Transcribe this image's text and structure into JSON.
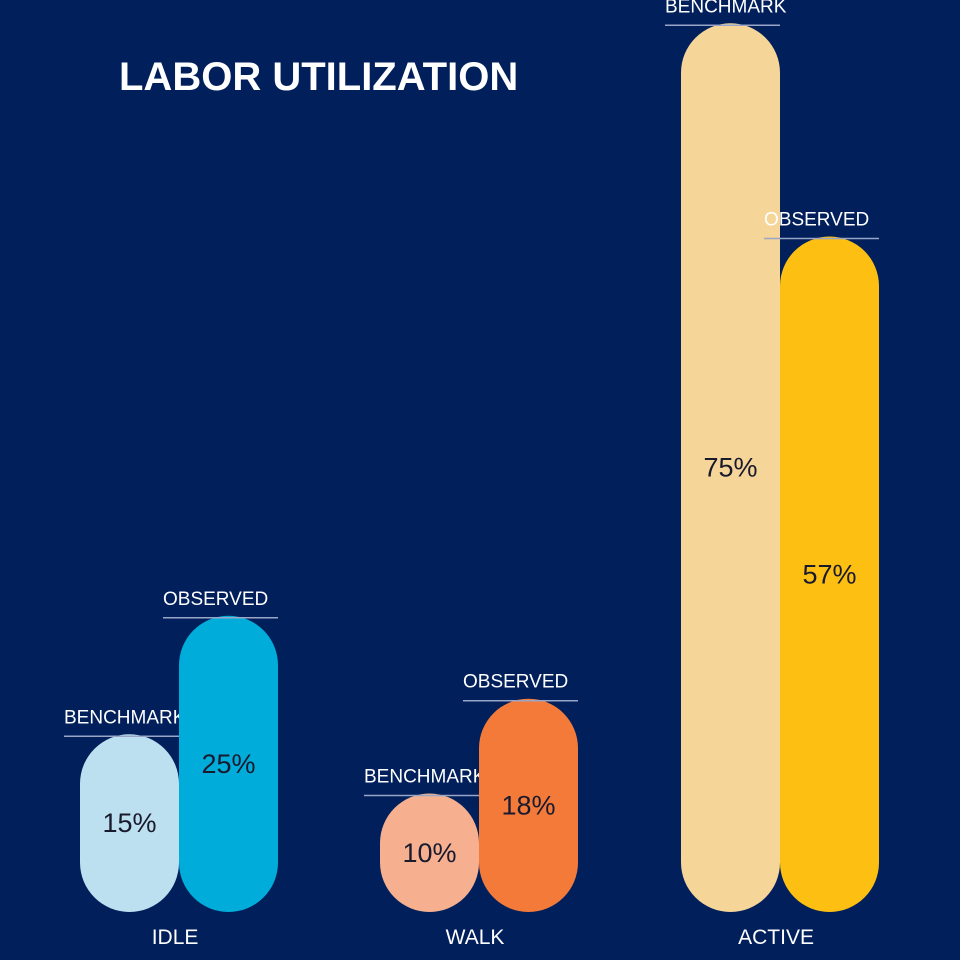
{
  "chart_data": {
    "type": "bar",
    "title": "LABOR UTILIZATION",
    "categories": [
      "IDLE",
      "WALK",
      "ACTIVE"
    ],
    "series": [
      {
        "name": "BENCHMARK",
        "values": [
          15,
          10,
          75
        ],
        "labels": [
          "15%",
          "10%",
          "75%"
        ],
        "colors": [
          "#bde0f0",
          "#f6b08f",
          "#f5d598"
        ]
      },
      {
        "name": "OBSERVED",
        "values": [
          25,
          18,
          57
        ],
        "labels": [
          "25%",
          "18%",
          "57%"
        ],
        "colors": [
          "#00acd9",
          "#f47a3a",
          "#fdbf12"
        ]
      }
    ],
    "unit": "%",
    "xlabel": "",
    "ylabel": "",
    "grid": false,
    "legend": "none"
  },
  "colors": {
    "background": "#001f5b",
    "text": "#ffffff",
    "value_text": "#1a1a2e"
  }
}
